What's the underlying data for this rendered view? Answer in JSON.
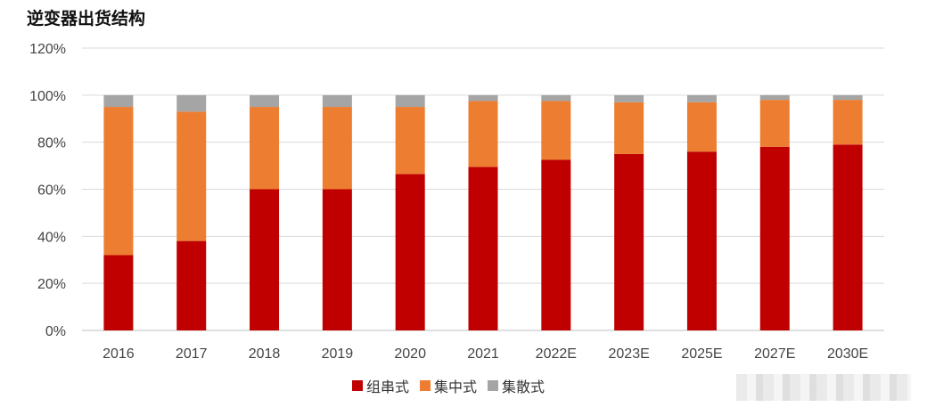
{
  "chart_data": {
    "type": "bar",
    "stacked": true,
    "title": "逆变器出货结构",
    "categories": [
      "2016",
      "2017",
      "2018",
      "2019",
      "2020",
      "2021",
      "2022E",
      "2023E",
      "2025E",
      "2027E",
      "2030E"
    ],
    "series": [
      {
        "name": "组串式",
        "color": "#c00000",
        "values": [
          32,
          38,
          60,
          60,
          66.5,
          69.5,
          72.5,
          75,
          76,
          78,
          79
        ]
      },
      {
        "name": "集中式",
        "color": "#ed7d31",
        "values": [
          63,
          55,
          35,
          35,
          28.5,
          28,
          25,
          22,
          21,
          20,
          19
        ]
      },
      {
        "name": "集散式",
        "color": "#a5a5a5",
        "values": [
          5,
          7,
          5,
          5,
          5,
          2.5,
          2.5,
          3,
          3,
          2,
          2
        ]
      }
    ],
    "yticks": [
      "0%",
      "20%",
      "40%",
      "60%",
      "80%",
      "100%",
      "120%"
    ],
    "ylim": [
      0,
      120
    ],
    "grid": true,
    "legend_position": "bottom"
  }
}
